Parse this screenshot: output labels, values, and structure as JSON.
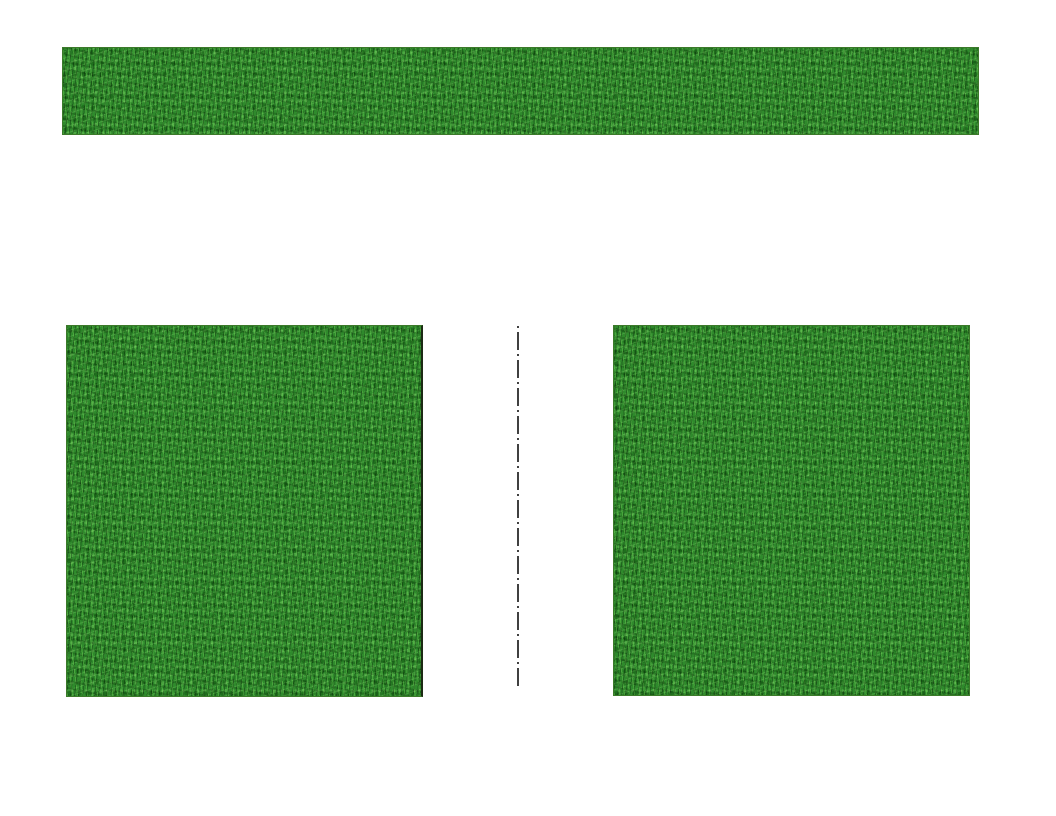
{
  "canvas": {
    "background": "#ffffff"
  },
  "colors": {
    "grass": "#2f8a2c",
    "grass_border": "#3c7a2a",
    "dash_line": "#000000"
  },
  "elements": {
    "banner": {
      "icon": "grass-texture-icon"
    },
    "left_square": {
      "icon": "grass-texture-icon"
    },
    "right_square": {
      "icon": "grass-texture-icon"
    },
    "horizontal_divider": {
      "style": "dash-dot"
    },
    "vertical_divider": {
      "style": "dash-dot"
    }
  }
}
